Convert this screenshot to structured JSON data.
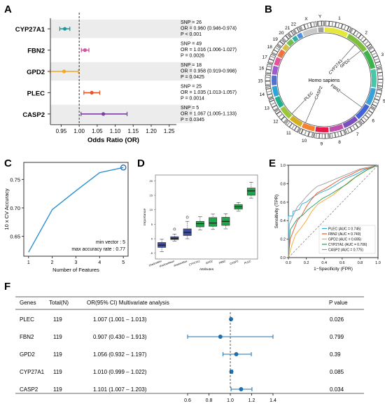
{
  "panels": {
    "a": "A",
    "b": "B",
    "c": "C",
    "d": "D",
    "e": "E",
    "f": "F"
  },
  "chart_data": [
    {
      "panel": "A",
      "type": "forest",
      "xlabel": "Odds Ratio (OR)",
      "xlim": [
        0.92,
        1.27
      ],
      "xticks": [
        "0.95",
        "1.00",
        "1.05",
        "1.10",
        "1.15",
        "1.20",
        "1.25"
      ],
      "xtick_values": [
        0.95,
        1.0,
        1.05,
        1.1,
        1.15,
        1.2,
        1.25
      ],
      "reference_line": 1.0,
      "rows": [
        {
          "gene": "CYP27A1",
          "or": 0.96,
          "lo": 0.946,
          "hi": 0.974,
          "color": "#1a9aa0",
          "lines": [
            "SNP = 26",
            "OR = 0.960 (0.946-0.974)",
            "P < 0.001"
          ]
        },
        {
          "gene": "FBN2",
          "or": 1.016,
          "lo": 1.006,
          "hi": 1.027,
          "color": "#d64fa0",
          "lines": [
            "SNP = 49",
            "OR = 1.016 (1.006-1.027)",
            "P = 0.0026"
          ]
        },
        {
          "gene": "GPD2",
          "or": 0.958,
          "lo": 0.919,
          "hi": 0.998,
          "color": "#f5a623",
          "lines": [
            "SNP = 18",
            "OR = 0.958 (0.919-0.998)",
            "P = 0.0425"
          ]
        },
        {
          "gene": "PLEC",
          "or": 1.035,
          "lo": 1.013,
          "hi": 1.057,
          "color": "#e8542a",
          "lines": [
            "SNP = 25",
            "OR = 1.035 (1.013-1.057)",
            "P = 0.0014"
          ]
        },
        {
          "gene": "CASP2",
          "or": 1.067,
          "lo": 1.005,
          "hi": 1.133,
          "color": "#7a3fa0",
          "lines": [
            "SNP = 5",
            "OR = 1.067 (1.005-1.133)",
            "P = 0.0345"
          ]
        }
      ]
    },
    {
      "panel": "B",
      "type": "circos",
      "center_label": "Homo sapiens",
      "chromosomes": [
        "1",
        "2",
        "3",
        "4",
        "5",
        "6",
        "7",
        "8",
        "9",
        "10",
        "11",
        "12",
        "13",
        "14",
        "15",
        "16",
        "17",
        "18",
        "19",
        "20",
        "21",
        "22",
        "X",
        "Y"
      ],
      "gene_labels": [
        "GPD2",
        "CYP27A1",
        "FBN2",
        "CASP2",
        "PLEC"
      ]
    },
    {
      "panel": "C",
      "type": "line",
      "xlabel": "Number of Features",
      "ylabel": "10 x CV Accuracy",
      "x": [
        1,
        2,
        3,
        4,
        5
      ],
      "y": [
        0.622,
        0.697,
        0.73,
        0.762,
        0.771
      ],
      "xlim": [
        0.8,
        5.2
      ],
      "ylim": [
        0.615,
        0.78
      ],
      "yticks": [
        0.65,
        0.7,
        0.75
      ],
      "xticks": [
        1,
        2,
        3,
        4,
        5
      ],
      "highlight_index": 4,
      "annotations": [
        "min vector : 5",
        "max accuracy rate : 0.77"
      ]
    },
    {
      "panel": "D",
      "type": "boxplot",
      "xlabel": "Attributes",
      "ylabel": "Importance",
      "ylim": [
        -7,
        22
      ],
      "yticks": [
        -5,
        0,
        5,
        10,
        15,
        20
      ],
      "boxes": [
        {
          "label": "shadowMin",
          "color": "#3f4fa0",
          "min": -4.5,
          "q1": -3.0,
          "med": -2.2,
          "q3": -1.3,
          "max": -0.2
        },
        {
          "label": "shadowMean",
          "color": "#3f4fa0",
          "min": -0.8,
          "q1": -0.3,
          "med": 0.1,
          "q3": 0.7,
          "max": 1.6,
          "outliers": [
            3.3
          ]
        },
        {
          "label": "shadowMax",
          "color": "#3f4fa0",
          "min": 0.0,
          "q1": 1.1,
          "med": 2.2,
          "q3": 3.4,
          "max": 6.0,
          "outliers": [
            7.4
          ]
        },
        {
          "label": "CYP27A1",
          "color": "#1ea54a",
          "min": 3.0,
          "q1": 4.1,
          "med": 5.2,
          "q3": 6.0,
          "max": 7.6
        },
        {
          "label": "GPD2",
          "color": "#1ea54a",
          "min": 3.2,
          "q1": 4.3,
          "med": 5.4,
          "q3": 7.3,
          "max": 8.5
        },
        {
          "label": "FBN2",
          "color": "#1ea54a",
          "min": 3.4,
          "q1": 4.6,
          "med": 6.0,
          "q3": 7.4,
          "max": 8.6
        },
        {
          "label": "CASP2",
          "color": "#1ea54a",
          "min": 9.5,
          "q1": 10.2,
          "med": 11.0,
          "q3": 11.8,
          "max": 12.5
        },
        {
          "label": "PLEC",
          "color": "#1ea54a",
          "min": 14.0,
          "q1": 15.0,
          "med": 16.5,
          "q3": 17.5,
          "max": 19.5
        }
      ]
    },
    {
      "panel": "E",
      "type": "roc",
      "xlabel": "1−Specificity (FPR)",
      "ylabel": "Sensitivity (TPR)",
      "xlim": [
        0,
        1
      ],
      "ylim": [
        0,
        1
      ],
      "ticks": [
        "0.0",
        "0.2",
        "0.4",
        "0.6",
        "0.8",
        "1.0"
      ],
      "tick_values": [
        0,
        0.2,
        0.4,
        0.6,
        0.8,
        1.0
      ],
      "series": [
        {
          "name": "PLEC (AUC = 0.745)",
          "color": "#2aa7d6",
          "points": [
            [
              0,
              0
            ],
            [
              0,
              0.45
            ],
            [
              0.05,
              0.45
            ],
            [
              0.05,
              0.5
            ],
            [
              0.12,
              0.52
            ],
            [
              0.15,
              0.58
            ],
            [
              0.2,
              0.6
            ],
            [
              0.28,
              0.66
            ],
            [
              0.35,
              0.7
            ],
            [
              0.45,
              0.74
            ],
            [
              0.55,
              0.8
            ],
            [
              0.65,
              0.86
            ],
            [
              0.75,
              0.9
            ],
            [
              0.85,
              0.95
            ],
            [
              1,
              1
            ]
          ]
        },
        {
          "name": "FBN2 (AUC = 0.749)",
          "color": "#e8542a",
          "points": [
            [
              0,
              0
            ],
            [
              0.02,
              0.2
            ],
            [
              0.06,
              0.3
            ],
            [
              0.1,
              0.4
            ],
            [
              0.15,
              0.46
            ],
            [
              0.2,
              0.55
            ],
            [
              0.25,
              0.62
            ],
            [
              0.32,
              0.7
            ],
            [
              0.4,
              0.74
            ],
            [
              0.5,
              0.8
            ],
            [
              0.6,
              0.86
            ],
            [
              0.7,
              0.9
            ],
            [
              0.8,
              0.95
            ],
            [
              0.9,
              0.97
            ],
            [
              1,
              1
            ]
          ]
        },
        {
          "name": "GPD2 (AUC = 0.695)",
          "color": "#f5a623",
          "points": [
            [
              0,
              0
            ],
            [
              0.04,
              0.14
            ],
            [
              0.08,
              0.25
            ],
            [
              0.14,
              0.32
            ],
            [
              0.2,
              0.4
            ],
            [
              0.26,
              0.5
            ],
            [
              0.33,
              0.58
            ],
            [
              0.4,
              0.62
            ],
            [
              0.5,
              0.68
            ],
            [
              0.6,
              0.76
            ],
            [
              0.7,
              0.84
            ],
            [
              0.8,
              0.9
            ],
            [
              0.9,
              0.96
            ],
            [
              1,
              1
            ]
          ]
        },
        {
          "name": "CYP27A1 (AUC = 0.706)",
          "color": "#1a9a60",
          "points": [
            [
              0,
              0
            ],
            [
              0.02,
              0.3
            ],
            [
              0.06,
              0.36
            ],
            [
              0.1,
              0.42
            ],
            [
              0.16,
              0.46
            ],
            [
              0.22,
              0.52
            ],
            [
              0.3,
              0.58
            ],
            [
              0.38,
              0.64
            ],
            [
              0.46,
              0.68
            ],
            [
              0.56,
              0.74
            ],
            [
              0.66,
              0.8
            ],
            [
              0.76,
              0.88
            ],
            [
              0.88,
              0.95
            ],
            [
              1,
              1
            ]
          ]
        },
        {
          "name": "CASP2 (AUC = 0.775)",
          "color": "#9a9a9a",
          "points": [
            [
              0,
              0
            ],
            [
              0.01,
              0.36
            ],
            [
              0.05,
              0.45
            ],
            [
              0.1,
              0.55
            ],
            [
              0.15,
              0.6
            ],
            [
              0.2,
              0.66
            ],
            [
              0.26,
              0.72
            ],
            [
              0.32,
              0.77
            ],
            [
              0.4,
              0.8
            ],
            [
              0.5,
              0.84
            ],
            [
              0.6,
              0.88
            ],
            [
              0.7,
              0.92
            ],
            [
              0.8,
              0.96
            ],
            [
              1,
              1
            ]
          ]
        }
      ]
    },
    {
      "panel": "F",
      "type": "forest_table",
      "headers": {
        "genes": "Genes",
        "total": "Total(N)",
        "or": "OR(95% CI) Multivariate analysis",
        "p": "P value"
      },
      "xlim": [
        0.6,
        1.4
      ],
      "xticks": [
        "0.6",
        "0.8",
        "1.0",
        "1.2",
        "1.4"
      ],
      "xtick_values": [
        0.6,
        0.8,
        1.0,
        1.2,
        1.4
      ],
      "reference_line": 1.0,
      "rows": [
        {
          "gene": "PLEC",
          "n": "119",
          "or_text": "1.007 (1.001 – 1.013)",
          "p": "0.026",
          "or": 1.007,
          "lo": 1.001,
          "hi": 1.013
        },
        {
          "gene": "FBN2",
          "n": "119",
          "or_text": "0.907 (0.430 – 1.913)",
          "p": "0.799",
          "or": 0.907,
          "lo": 0.43,
          "hi": 1.913
        },
        {
          "gene": "GPD2",
          "n": "119",
          "or_text": "1.056 (0.932 – 1.197)",
          "p": "0.39",
          "or": 1.056,
          "lo": 0.932,
          "hi": 1.197
        },
        {
          "gene": "CYP27A1",
          "n": "119",
          "or_text": "1.010 (0.999 – 1.022)",
          "p": "0.085",
          "or": 1.01,
          "lo": 0.999,
          "hi": 1.022
        },
        {
          "gene": "CASP2",
          "n": "119",
          "or_text": "1.101 (1.007 – 1.203)",
          "p": "0.034",
          "or": 1.101,
          "lo": 1.007,
          "hi": 1.203
        }
      ],
      "marker_color": "#1f6fb0"
    }
  ]
}
